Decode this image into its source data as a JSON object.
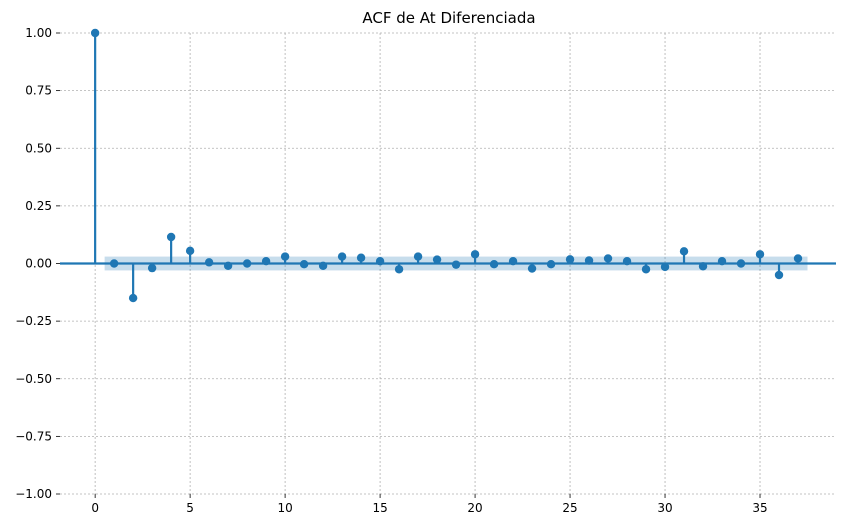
{
  "chart_data": {
    "type": "stem",
    "title": "ACF de At Diferenciada",
    "xlabel": "",
    "ylabel": "",
    "xlim": [
      -1.85,
      39.0
    ],
    "ylim": [
      -1.0,
      1.0
    ],
    "x_ticks": [
      0,
      5,
      10,
      15,
      20,
      25,
      30,
      35
    ],
    "y_ticks": [
      -1.0,
      -0.75,
      -0.5,
      -0.25,
      0.0,
      0.25,
      0.5,
      0.75,
      1.0
    ],
    "x_tick_labels": [
      "0",
      "5",
      "10",
      "15",
      "20",
      "25",
      "30",
      "35"
    ],
    "y_tick_labels": [
      "−1.00",
      "−0.75",
      "−0.50",
      "−0.25",
      "0.00",
      "0.25",
      "0.50",
      "0.75",
      "1.00"
    ],
    "grid": true,
    "confidence_band": 0.03,
    "lags": [
      0,
      1,
      2,
      3,
      4,
      5,
      6,
      7,
      8,
      9,
      10,
      11,
      12,
      13,
      14,
      15,
      16,
      17,
      18,
      19,
      20,
      21,
      22,
      23,
      24,
      25,
      26,
      27,
      28,
      29,
      30,
      31,
      32,
      33,
      34,
      35,
      36,
      37
    ],
    "values": [
      1.0,
      0.0,
      -0.15,
      -0.02,
      0.115,
      0.055,
      0.005,
      -0.01,
      0.0,
      0.01,
      0.03,
      -0.003,
      -0.01,
      0.03,
      0.025,
      0.01,
      -0.025,
      0.03,
      0.017,
      -0.005,
      0.04,
      -0.003,
      0.01,
      -0.022,
      -0.003,
      0.018,
      0.013,
      0.022,
      0.01,
      -0.025,
      -0.015,
      0.053,
      -0.012,
      0.01,
      0.0,
      0.04,
      -0.05,
      0.022
    ],
    "colors": {
      "series": "#1f77b4",
      "grid": "#b0b0b0"
    }
  }
}
